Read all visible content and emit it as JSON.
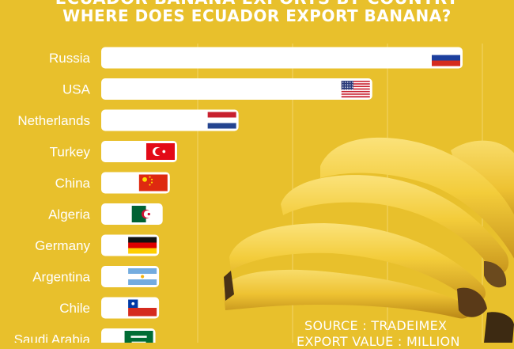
{
  "page": {
    "title_line_1": "ECUADOR BANANA EXPORTS BY COUNTRY",
    "title_line_2": "WHERE DOES ECUADOR EXPORT BANANA?",
    "source": "SOURCE : TRADEIMEX",
    "value_note": "EXPORT VALUE : MILLION"
  },
  "chart_data": {
    "type": "bar",
    "orientation": "horizontal",
    "title": "WHERE DOES ECUADOR EXPORT BANANA?",
    "categories": [
      "Russia",
      "USA",
      "Netherlands",
      "Turkey",
      "China",
      "Algeria",
      "Germany",
      "Argentina",
      "Chile",
      "Saudi Arabia"
    ],
    "values": [
      100,
      75,
      38,
      21,
      19,
      17,
      16,
      16,
      16,
      15
    ],
    "xlim": [
      0,
      100
    ],
    "grid": true,
    "legend": "none",
    "flags": [
      "russia-flag-icon",
      "usa-flag-icon",
      "netherlands-flag-icon",
      "turkey-flag-icon",
      "china-flag-icon",
      "algeria-flag-icon",
      "germany-flag-icon",
      "argentina-flag-icon",
      "chile-flag-icon",
      "saudi-arabia-flag-icon"
    ]
  },
  "colors": {
    "background": "#e8c02c",
    "bar": "#ffffff",
    "label": "#ffffff",
    "grid": "#f2d46a"
  }
}
